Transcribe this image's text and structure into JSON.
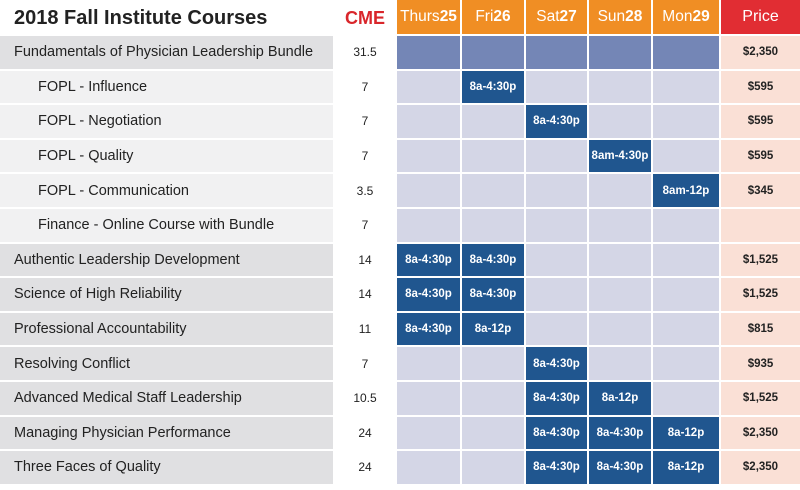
{
  "header": {
    "title": "2018 Fall Institute Courses",
    "cme_label": "CME",
    "price_label": "Price",
    "days": [
      {
        "name": "Thurs",
        "num": "25"
      },
      {
        "name": "Fri",
        "num": "26"
      },
      {
        "name": "Sat",
        "num": "27"
      },
      {
        "name": "Sun",
        "num": "28"
      },
      {
        "name": "Mon",
        "num": "29"
      }
    ]
  },
  "colors": {
    "day_header": "#f08e24",
    "price_header": "#e12d33",
    "cme_text": "#d9262b",
    "session_cell": "#20568f",
    "bundle_cell": "#7486b6",
    "empty_cell": "#d4d6e6",
    "price_cell": "#fae0d6"
  },
  "courses": [
    {
      "name": "Fundamentals of Physician Leadership Bundle",
      "cme": "31.5",
      "price": "$2,350",
      "indent": false,
      "shade": "g",
      "bundle": true,
      "sessions": [
        "",
        "",
        "",
        "",
        ""
      ]
    },
    {
      "name": "FOPL - Influence",
      "cme": "7",
      "price": "$595",
      "indent": true,
      "shade": "l",
      "bundle": false,
      "sessions": [
        "",
        "8a-4:30p",
        "",
        "",
        ""
      ]
    },
    {
      "name": "FOPL - Negotiation",
      "cme": "7",
      "price": "$595",
      "indent": true,
      "shade": "l",
      "bundle": false,
      "sessions": [
        "",
        "",
        "8a-4:30p",
        "",
        ""
      ]
    },
    {
      "name": "FOPL - Quality",
      "cme": "7",
      "price": "$595",
      "indent": true,
      "shade": "l",
      "bundle": false,
      "sessions": [
        "",
        "",
        "",
        "8am-4:30p",
        ""
      ]
    },
    {
      "name": "FOPL - Communication",
      "cme": "3.5",
      "price": "$345",
      "indent": true,
      "shade": "l",
      "bundle": false,
      "sessions": [
        "",
        "",
        "",
        "",
        "8am-12p"
      ]
    },
    {
      "name": "Finance - Online Course with Bundle",
      "cme": "7",
      "price": "",
      "indent": true,
      "shade": "l",
      "bundle": false,
      "sessions": [
        "",
        "",
        "",
        "",
        ""
      ]
    },
    {
      "name": "Authentic Leadership Development",
      "cme": "14",
      "price": "$1,525",
      "indent": false,
      "shade": "g",
      "bundle": false,
      "sessions": [
        "8a-4:30p",
        "8a-4:30p",
        "",
        "",
        ""
      ]
    },
    {
      "name": "Science of High Reliability",
      "cme": "14",
      "price": "$1,525",
      "indent": false,
      "shade": "g",
      "bundle": false,
      "sessions": [
        "8a-4:30p",
        "8a-4:30p",
        "",
        "",
        ""
      ]
    },
    {
      "name": "Professional Accountability",
      "cme": "11",
      "price": "$815",
      "indent": false,
      "shade": "g",
      "bundle": false,
      "sessions": [
        "8a-4:30p",
        "8a-12p",
        "",
        "",
        ""
      ]
    },
    {
      "name": "Resolving Conflict",
      "cme": "7",
      "price": "$935",
      "indent": false,
      "shade": "g",
      "bundle": false,
      "sessions": [
        "",
        "",
        "8a-4:30p",
        "",
        ""
      ]
    },
    {
      "name": "Advanced Medical Staff Leadership",
      "cme": "10.5",
      "price": "$1,525",
      "indent": false,
      "shade": "g",
      "bundle": false,
      "sessions": [
        "",
        "",
        "8a-4:30p",
        "8a-12p",
        ""
      ]
    },
    {
      "name": "Managing Physician Performance",
      "cme": "24",
      "price": "$2,350",
      "indent": false,
      "shade": "g",
      "bundle": false,
      "sessions": [
        "",
        "",
        "8a-4:30p",
        "8a-4:30p",
        "8a-12p"
      ]
    },
    {
      "name": "Three Faces of Quality",
      "cme": "24",
      "price": "$2,350",
      "indent": false,
      "shade": "g",
      "bundle": false,
      "sessions": [
        "",
        "",
        "8a-4:30p",
        "8a-4:30p",
        "8a-12p"
      ]
    }
  ]
}
